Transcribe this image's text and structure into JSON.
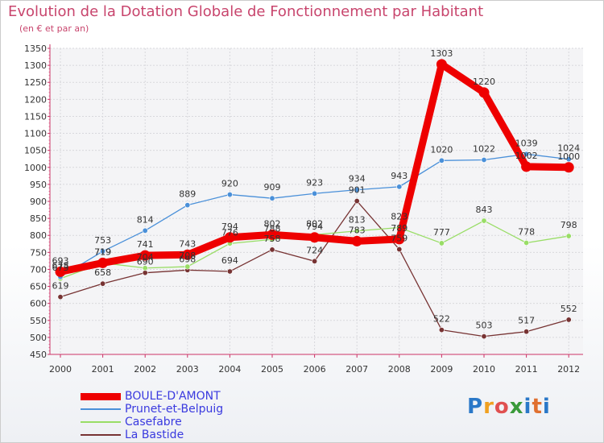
{
  "page": {
    "title": "Evolution de la Dotation Globale de Fonctionnement par Habitant",
    "subtitle": "(en € et par an)",
    "brand": "Proxiti"
  },
  "chart_data": {
    "type": "line",
    "title": "Evolution de la Dotation Globale de Fonctionnement par Habitant",
    "subtitle": "(en € et par an)",
    "xlabel": "",
    "ylabel": "",
    "ylim": [
      450,
      1350
    ],
    "ytick_step": 50,
    "grid": true,
    "legend_position": "bottom-left",
    "x": [
      "2000",
      "2001",
      "2002",
      "2003",
      "2004",
      "2005",
      "2006",
      "2007",
      "2008",
      "2009",
      "2010",
      "2011",
      "2012"
    ],
    "series": [
      {
        "name": "BOULE-D'AMONT",
        "color": "#ee0000",
        "emphasis": true,
        "values": [
          693,
          719,
          741,
          743,
          794,
          802,
          794,
          783,
          789,
          1303,
          1220,
          1002,
          1000
        ]
      },
      {
        "name": "Prunet-et-Belpuig",
        "color": "#4a90d9",
        "values": [
          678,
          753,
          814,
          889,
          920,
          909,
          923,
          934,
          943,
          1020,
          1022,
          1039,
          1024
        ]
      },
      {
        "name": "Casefabre",
        "color": "#99dd66",
        "values": [
          673,
          719,
          704,
          708,
          776,
          788,
          802,
          813,
          823,
          777,
          843,
          778,
          798
        ]
      },
      {
        "name": "La Bastide",
        "color": "#773333",
        "values": [
          619,
          658,
          690,
          698,
          694,
          758,
          724,
          901,
          759,
          522,
          503,
          517,
          552
        ]
      }
    ]
  }
}
